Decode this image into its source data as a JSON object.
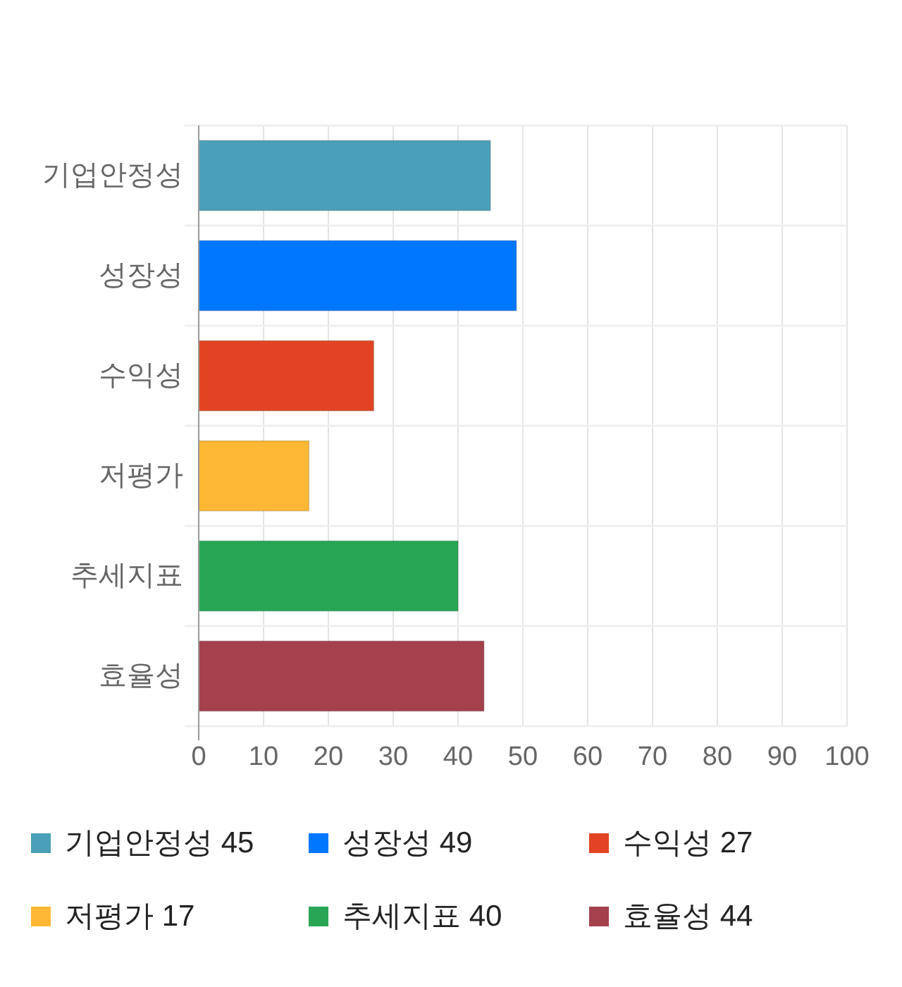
{
  "chart_data": {
    "type": "bar",
    "orientation": "horizontal",
    "categories": [
      "기업안정성",
      "성장성",
      "수익성",
      "저평가",
      "추세지표",
      "효율성"
    ],
    "values": [
      45,
      49,
      27,
      17,
      40,
      44
    ],
    "value_labels": [
      "45",
      "49",
      "27",
      "17",
      "40",
      "44"
    ],
    "colors": [
      "#4aa0b8",
      "#0077ff",
      "#e24423",
      "#ffb833",
      "#28a656",
      "#a5404d"
    ],
    "xlim": [
      0,
      100
    ],
    "xticks": [
      0,
      10,
      20,
      30,
      40,
      50,
      60,
      70,
      80,
      90,
      100
    ],
    "grid": true
  }
}
